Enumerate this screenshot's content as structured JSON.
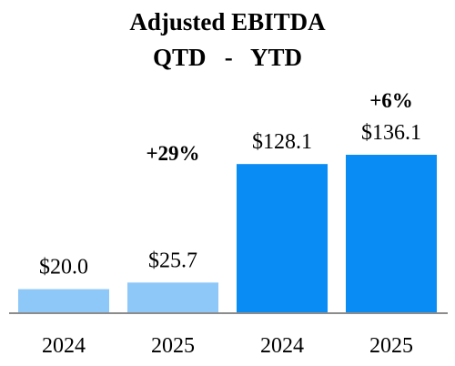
{
  "chart_data": {
    "type": "bar",
    "title": "Adjusted EBITDA",
    "subtitle": "QTD   -   YTD",
    "categories": [
      "2024",
      "2025",
      "2024",
      "2025"
    ],
    "values": [
      20.0,
      25.7,
      128.1,
      136.1
    ],
    "value_labels": [
      "$20.0",
      "$25.7",
      "$128.1",
      "$136.1"
    ],
    "bar_colors": [
      "#8ec8f8",
      "#8ec8f8",
      "#0a8cf5",
      "#0a8cf5"
    ],
    "groups": [
      "QTD",
      "QTD",
      "YTD",
      "YTD"
    ],
    "annotations": [
      "+29%",
      "+6%"
    ],
    "ylim": [
      0,
      136.1
    ],
    "grid": false,
    "legend": "none"
  }
}
